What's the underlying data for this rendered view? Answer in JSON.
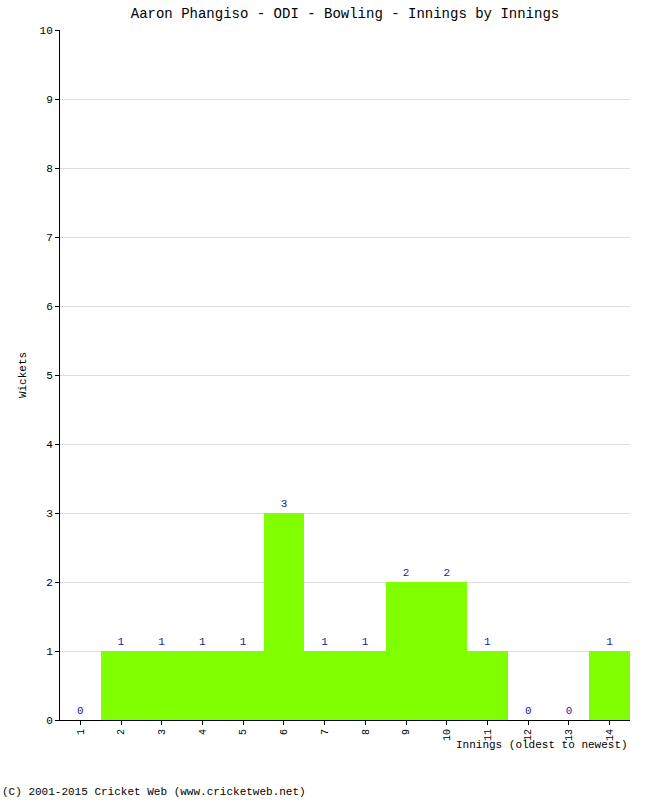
{
  "chart_data": {
    "type": "bar",
    "title": "Aaron Phangiso - ODI - Bowling - Innings by Innings",
    "x_label": "Innings (oldest to newest)",
    "y_label": "Wickets",
    "categories": [
      "1",
      "2",
      "3",
      "4",
      "5",
      "6",
      "7",
      "8",
      "9",
      "10",
      "11",
      "12",
      "13",
      "14"
    ],
    "values": [
      0,
      1,
      1,
      1,
      1,
      3,
      1,
      1,
      2,
      2,
      1,
      0,
      0,
      1
    ],
    "color": "#80ff00",
    "ylim": [
      0,
      10
    ],
    "yticks": [
      0,
      1,
      2,
      3,
      4,
      5,
      6,
      7,
      8,
      9,
      10
    ],
    "grid": true,
    "data_labels": true,
    "annotations": [
      "(C) 2001-2015 Cricket Web (www.cricketweb.net)"
    ]
  }
}
